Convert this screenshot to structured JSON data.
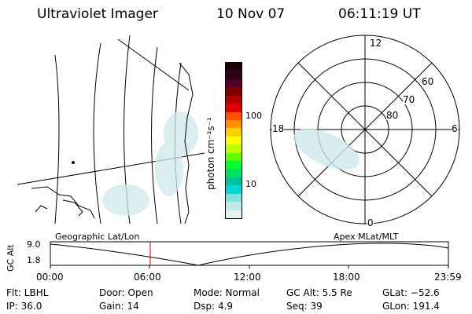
{
  "header": {
    "instrument": "Ultraviolet Imager",
    "date": "10 Nov 07",
    "time": "06:11:19 UT"
  },
  "colorbar": {
    "unit_label": "photon cm⁻²s⁻¹",
    "ticks": [
      "100",
      "10"
    ],
    "colors": [
      "#1a0000",
      "#300018",
      "#500028",
      "#800000",
      "#b00000",
      "#e00000",
      "#ff5000",
      "#ff9000",
      "#ffd000",
      "#ffff00",
      "#c0ff00",
      "#60ff00",
      "#00ff30",
      "#00e060",
      "#00c0a0",
      "#00d8d8",
      "#80e0e0",
      "#c0eaea",
      "#e8f2f2"
    ]
  },
  "polar": {
    "mlt_labels": {
      "top": "12",
      "left": "18",
      "right": "6",
      "bottom": "0"
    },
    "lat_labels": [
      "60",
      "70",
      "80"
    ]
  },
  "orbit": {
    "ylabel": "GC Alt",
    "ymax": "9.0",
    "ymin": "1.8",
    "left_label": "Geographic Lat/Lon",
    "right_label": "Apex  MLat/MLT",
    "xticks": [
      "00:00",
      "06:00",
      "12:00",
      "18:00",
      "23:59"
    ],
    "marker_time": "06:11"
  },
  "info": {
    "flt": "Flt: LBHL",
    "ip": "IP: 36.0",
    "door": "Door: Open",
    "gain": "Gain: 14",
    "mode": "Mode: Normal",
    "dsp": "Dsp:     4.9",
    "gcalt": "GC Alt: 5.5 Re",
    "seq": "Seq: 39",
    "glat": "GLat: −52.6",
    "glon": "GLon: 191.4"
  }
}
